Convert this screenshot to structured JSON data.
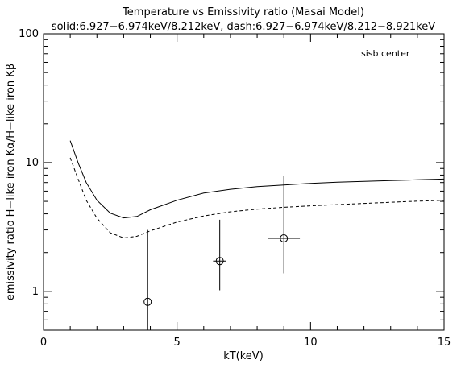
{
  "chart_data": {
    "type": "scatter",
    "title": "Temperature vs Emissivity ratio (Masai Model)",
    "subtitle": "solid:6.927−6.974keV/8.212keV, dash:6.927−6.974keV/8.212−8.921keV",
    "xlabel": "kT(keV)",
    "ylabel": "emissivity ratio H−like iron Kα/H−like iron Kβ",
    "annotation": "sisb center",
    "x_scale": "linear",
    "y_scale": "log",
    "xlim": [
      0,
      15
    ],
    "ylim": [
      0.5,
      100
    ],
    "x_ticks": [
      0,
      5,
      10,
      15
    ],
    "y_ticks": [
      1,
      10,
      100
    ],
    "grid": false,
    "series": [
      {
        "style": "solid",
        "x": [
          1.0,
          1.3,
          1.6,
          2.0,
          2.5,
          3.0,
          3.5,
          4.0,
          5.0,
          6.0,
          7.0,
          8.0,
          9.0,
          10.0,
          11.0,
          12.0,
          13.0,
          14.0,
          15.0
        ],
        "y": [
          14.8,
          9.9,
          7.0,
          5.1,
          4.05,
          3.72,
          3.82,
          4.3,
          5.1,
          5.8,
          6.2,
          6.5,
          6.7,
          6.9,
          7.05,
          7.15,
          7.25,
          7.35,
          7.45
        ]
      },
      {
        "style": "dashed",
        "x": [
          1.0,
          1.3,
          1.6,
          2.0,
          2.5,
          3.0,
          3.5,
          4.0,
          5.0,
          6.0,
          7.0,
          8.0,
          9.0,
          10.0,
          11.0,
          12.0,
          13.0,
          14.0,
          15.0
        ],
        "y": [
          10.9,
          7.4,
          5.1,
          3.7,
          2.85,
          2.6,
          2.68,
          2.95,
          3.45,
          3.85,
          4.15,
          4.35,
          4.5,
          4.62,
          4.72,
          4.82,
          4.92,
          5.02,
          5.1
        ]
      },
      {
        "style": "points-with-errorbars",
        "points": [
          {
            "x": 3.9,
            "y": 0.83,
            "xerr": [
              0.0,
              0.0
            ],
            "ylo": 0.5,
            "yhi": 3.0
          },
          {
            "x": 6.6,
            "y": 1.72,
            "xerr": [
              0.25,
              0.25
            ],
            "ylo": 1.02,
            "yhi": 3.6
          },
          {
            "x": 9.0,
            "y": 2.58,
            "xerr": [
              0.6,
              0.6
            ],
            "ylo": 1.38,
            "yhi": 7.9
          }
        ]
      }
    ]
  }
}
